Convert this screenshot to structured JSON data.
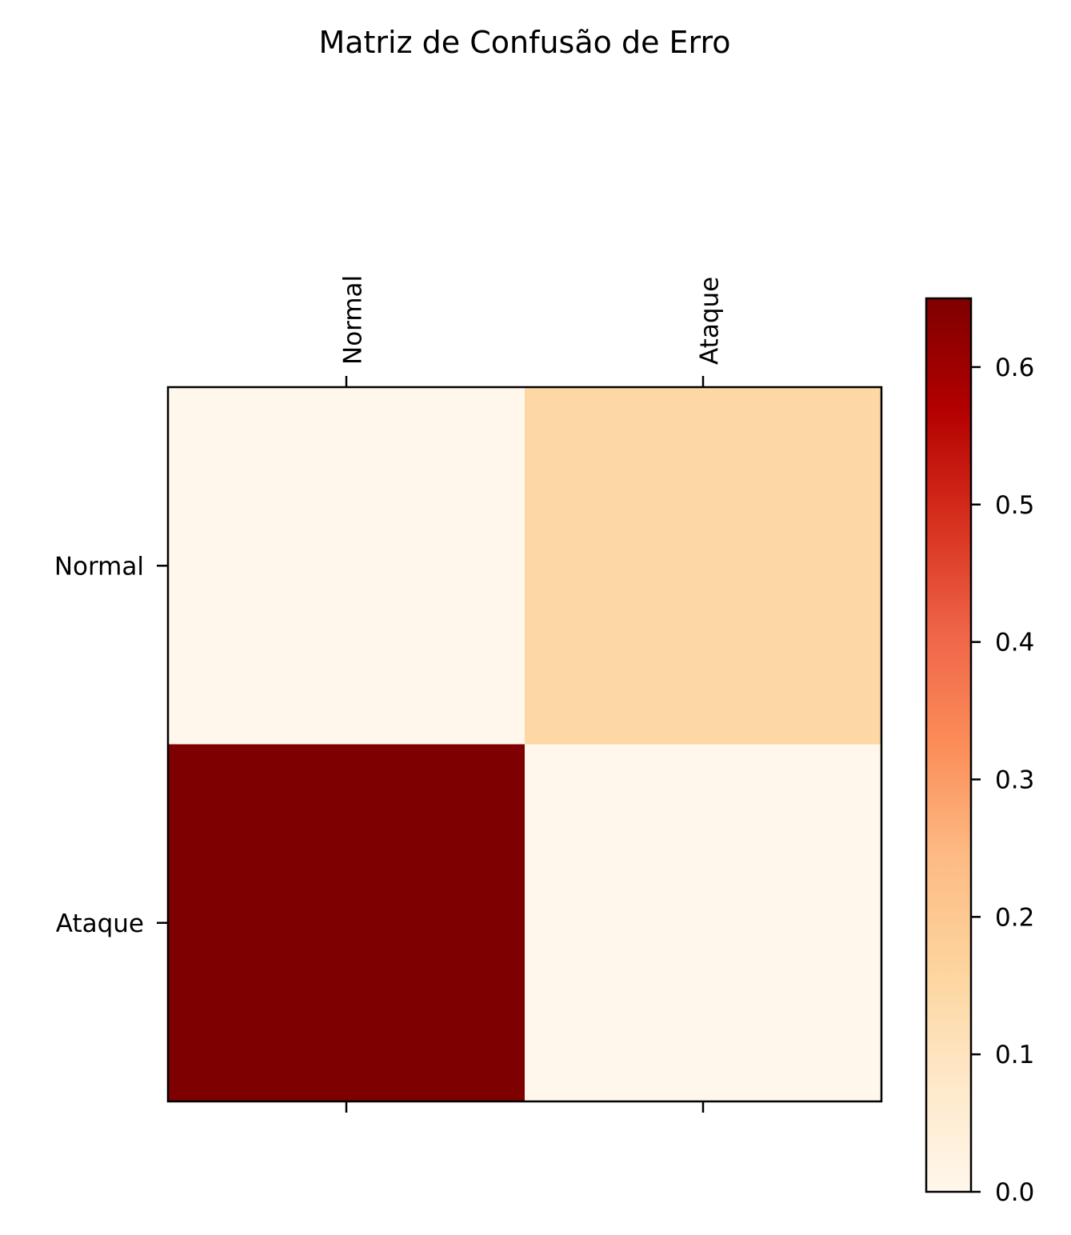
{
  "chart_data": {
    "type": "heatmap",
    "title": "Matriz de Confusão de Erro",
    "x_categories": [
      "Normal",
      "Ataque"
    ],
    "y_categories": [
      "Normal",
      "Ataque"
    ],
    "values": [
      [
        0.0,
        0.15
      ],
      [
        0.65,
        0.0
      ]
    ],
    "colormap": "OrRd",
    "colorbar": {
      "range": [
        0.0,
        0.65
      ],
      "ticks": [
        0.0,
        0.1,
        0.2,
        0.3,
        0.4,
        0.5,
        0.6
      ],
      "tick_labels": [
        "0.0",
        "0.1",
        "0.2",
        "0.3",
        "0.4",
        "0.5",
        "0.6"
      ]
    },
    "xlabel": "",
    "ylabel": "",
    "grid": false
  }
}
